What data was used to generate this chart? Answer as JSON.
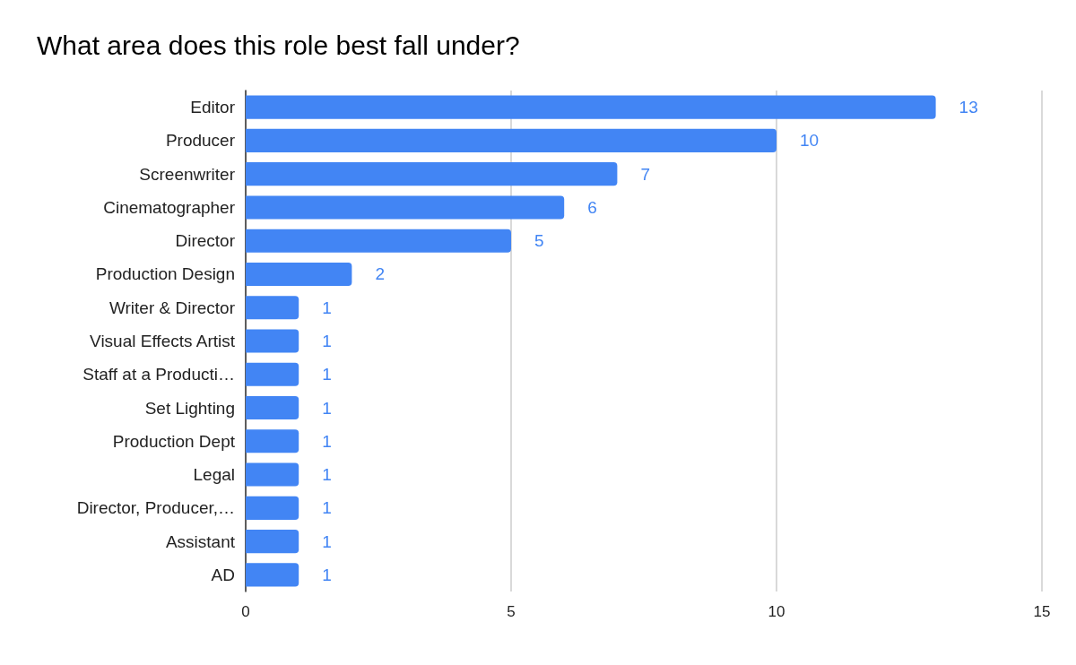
{
  "chart_data": {
    "type": "bar",
    "title": "What area does this role best fall under?",
    "orientation": "horizontal",
    "categories": [
      "Editor",
      "Producer",
      "Screenwriter",
      "Cinematographer",
      "Director",
      "Production Design",
      "Writer & Director",
      "Visual Effects Artist",
      "Staff at a Producti…",
      "Set Lighting",
      "Production Dept",
      "Legal",
      "Director, Producer,…",
      "Assistant",
      "AD"
    ],
    "values": [
      13,
      10,
      7,
      6,
      5,
      2,
      1,
      1,
      1,
      1,
      1,
      1,
      1,
      1,
      1
    ],
    "color": "#4285f4",
    "xlim": [
      0,
      15
    ],
    "xticks": [
      0,
      5,
      10,
      15
    ],
    "grid": "x",
    "data_labels": true
  }
}
